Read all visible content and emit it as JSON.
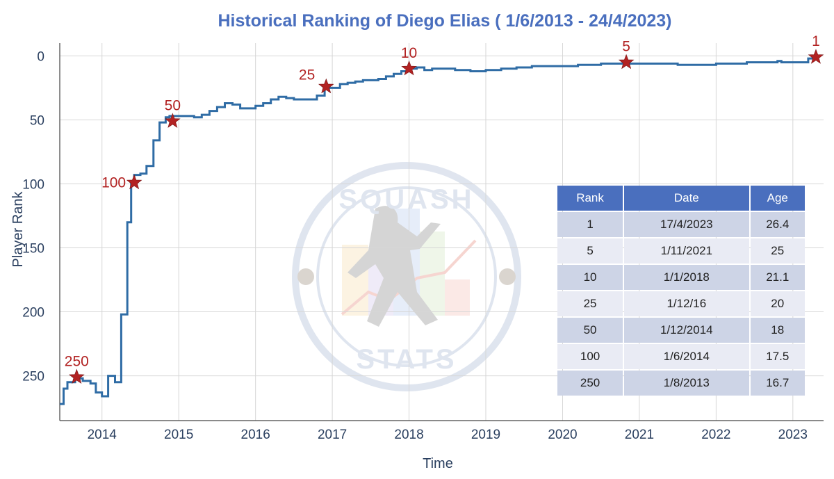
{
  "chart_data": {
    "type": "line",
    "line_shape": "step",
    "title": "Historical Ranking of Diego Elias ( 1/6/2013 - 24/4/2023)",
    "xlabel": "Time",
    "ylabel": "Player Rank",
    "xlim": [
      2013.45,
      2023.4
    ],
    "ylim": [
      285,
      -10
    ],
    "y_reversed": true,
    "x_ticks": [
      "2014",
      "2015",
      "2016",
      "2017",
      "2018",
      "2019",
      "2020",
      "2021",
      "2022",
      "2023"
    ],
    "y_ticks": [
      0,
      50,
      100,
      150,
      200,
      250
    ],
    "grid": true,
    "line_color": "#2f6ca5",
    "marker_color": "#b22222",
    "title_color": "#4a6fbe",
    "series": [
      {
        "name": "Rank",
        "x": [
          2013.45,
          2013.5,
          2013.55,
          2013.65,
          2013.75,
          2013.85,
          2013.92,
          2014.0,
          2014.08,
          2014.17,
          2014.25,
          2014.33,
          2014.38,
          2014.42,
          2014.5,
          2014.58,
          2014.67,
          2014.75,
          2014.83,
          2014.88,
          2015.0,
          2015.1,
          2015.2,
          2015.3,
          2015.4,
          2015.5,
          2015.6,
          2015.7,
          2015.8,
          2015.9,
          2016.0,
          2016.1,
          2016.2,
          2016.3,
          2016.4,
          2016.5,
          2016.6,
          2016.8,
          2016.9,
          2017.0,
          2017.1,
          2017.2,
          2017.3,
          2017.4,
          2017.5,
          2017.6,
          2017.7,
          2017.8,
          2017.9,
          2018.0,
          2018.1,
          2018.2,
          2018.3,
          2018.4,
          2018.6,
          2018.8,
          2019.0,
          2019.2,
          2019.4,
          2019.6,
          2019.8,
          2020.0,
          2020.2,
          2020.5,
          2020.83,
          2021.0,
          2021.3,
          2021.5,
          2021.8,
          2021.9,
          2022.0,
          2022.2,
          2022.4,
          2022.6,
          2022.8,
          2022.85,
          2023.0,
          2023.1,
          2023.2,
          2023.3
        ],
        "y": [
          272,
          260,
          255,
          252,
          254,
          256,
          263,
          266,
          250,
          255,
          202,
          130,
          100,
          93,
          92,
          86,
          66,
          52,
          48,
          47,
          47,
          47,
          48,
          46,
          43,
          40,
          37,
          38,
          41,
          41,
          39,
          37,
          34,
          32,
          33,
          34,
          34,
          31,
          25,
          25,
          22,
          21,
          20,
          19,
          19,
          18,
          16,
          14,
          12,
          10,
          9,
          11,
          10,
          10,
          11,
          12,
          11,
          10,
          9,
          8,
          8,
          8,
          7,
          6,
          6,
          6,
          6,
          7,
          7,
          7,
          6,
          6,
          5,
          5,
          4,
          5,
          5,
          5,
          2,
          1
        ]
      }
    ],
    "milestones": [
      {
        "label": "1",
        "x": 2023.3,
        "y": 1
      },
      {
        "label": "5",
        "x": 2020.83,
        "y": 5
      },
      {
        "label": "10",
        "x": 2018.0,
        "y": 10
      },
      {
        "label": "25",
        "x": 2016.92,
        "y": 24
      },
      {
        "label": "50",
        "x": 2014.92,
        "y": 51
      },
      {
        "label": "100",
        "x": 2014.42,
        "y": 99
      },
      {
        "label": "250",
        "x": 2013.67,
        "y": 251
      }
    ],
    "table": {
      "headers": [
        "Rank",
        "Date",
        "Age"
      ],
      "rows": [
        [
          "1",
          "17/4/2023",
          "26.4"
        ],
        [
          "5",
          "1/11/2021",
          "25"
        ],
        [
          "10",
          "1/1/2018",
          "21.1"
        ],
        [
          "25",
          "1/12/16",
          "20"
        ],
        [
          "50",
          "1/12/2014",
          "18"
        ],
        [
          "100",
          "1/6/2014",
          "17.5"
        ],
        [
          "250",
          "1/8/2013",
          "16.7"
        ]
      ]
    },
    "watermark": {
      "top": "SQUASH",
      "bottom": "STATS"
    }
  }
}
